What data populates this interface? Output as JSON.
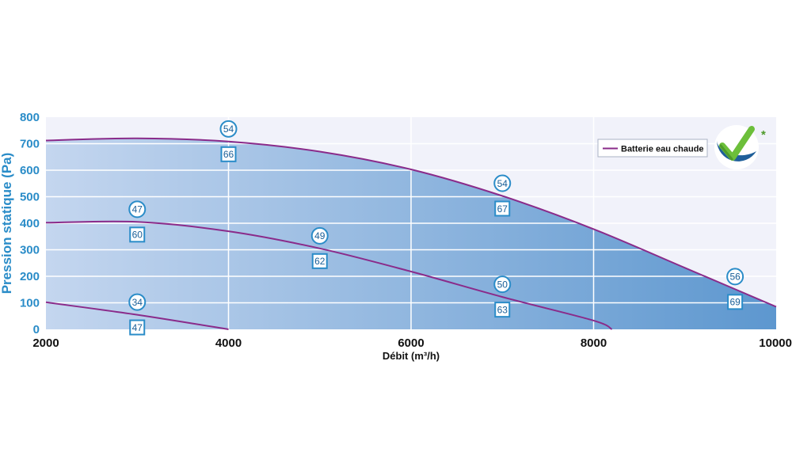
{
  "chart_data": {
    "type": "line",
    "xlabel": "Débit (m³/h)",
    "ylabel": "Pression statique (Pa)",
    "xlim": [
      2000,
      10000
    ],
    "ylim": [
      0,
      800
    ],
    "x_ticks": [
      2000,
      4000,
      6000,
      8000,
      10000
    ],
    "y_ticks": [
      0,
      100,
      200,
      300,
      400,
      500,
      600,
      700,
      800
    ],
    "grid": true,
    "legend_position": "top-right",
    "series": [
      {
        "name": "Batterie eau chaude",
        "color": "#8a2b8a",
        "points": [
          [
            2000,
            712
          ],
          [
            3000,
            720
          ],
          [
            4000,
            708
          ],
          [
            5000,
            670
          ],
          [
            6000,
            603
          ],
          [
            7000,
            503
          ],
          [
            8000,
            378
          ],
          [
            9000,
            232
          ],
          [
            10000,
            85
          ]
        ]
      },
      {
        "color": "#8a2b8a",
        "points": [
          [
            2000,
            402
          ],
          [
            3000,
            405
          ],
          [
            4000,
            370
          ],
          [
            5000,
            305
          ],
          [
            6000,
            218
          ],
          [
            7000,
            122
          ],
          [
            8000,
            33
          ],
          [
            8200,
            0
          ]
        ]
      },
      {
        "color": "#8a2b8a",
        "points": [
          [
            2000,
            102
          ],
          [
            3000,
            55
          ],
          [
            4000,
            0
          ]
        ]
      }
    ],
    "annotations": [
      {
        "x": 4000,
        "circle": "54",
        "square": "66",
        "series": 0
      },
      {
        "x": 7000,
        "circle": "54",
        "square": "67",
        "series": 0
      },
      {
        "x": 9550,
        "circle": "56",
        "square": "69",
        "series": 0
      },
      {
        "x": 3000,
        "circle": "47",
        "square": "60",
        "series": 1
      },
      {
        "x": 5000,
        "circle": "49",
        "square": "62",
        "series": 1
      },
      {
        "x": 7000,
        "circle": "50",
        "square": "63",
        "series": 1
      },
      {
        "x": 3000,
        "circle": "34",
        "square": "47",
        "series": 2
      }
    ]
  },
  "legend": {
    "label": "Batterie eau chaude",
    "logo_icon": "check-badge-icon",
    "asterisk": "*"
  },
  "colors": {
    "line": "#8a2b8a",
    "badge": "#2a8cc8",
    "grid": "#ffffff",
    "plot_bg": "#f1f2fa",
    "fill_light": "#c4d6ef",
    "fill_dark": "#5d97cf",
    "axis_title": "#2a8cc8"
  }
}
